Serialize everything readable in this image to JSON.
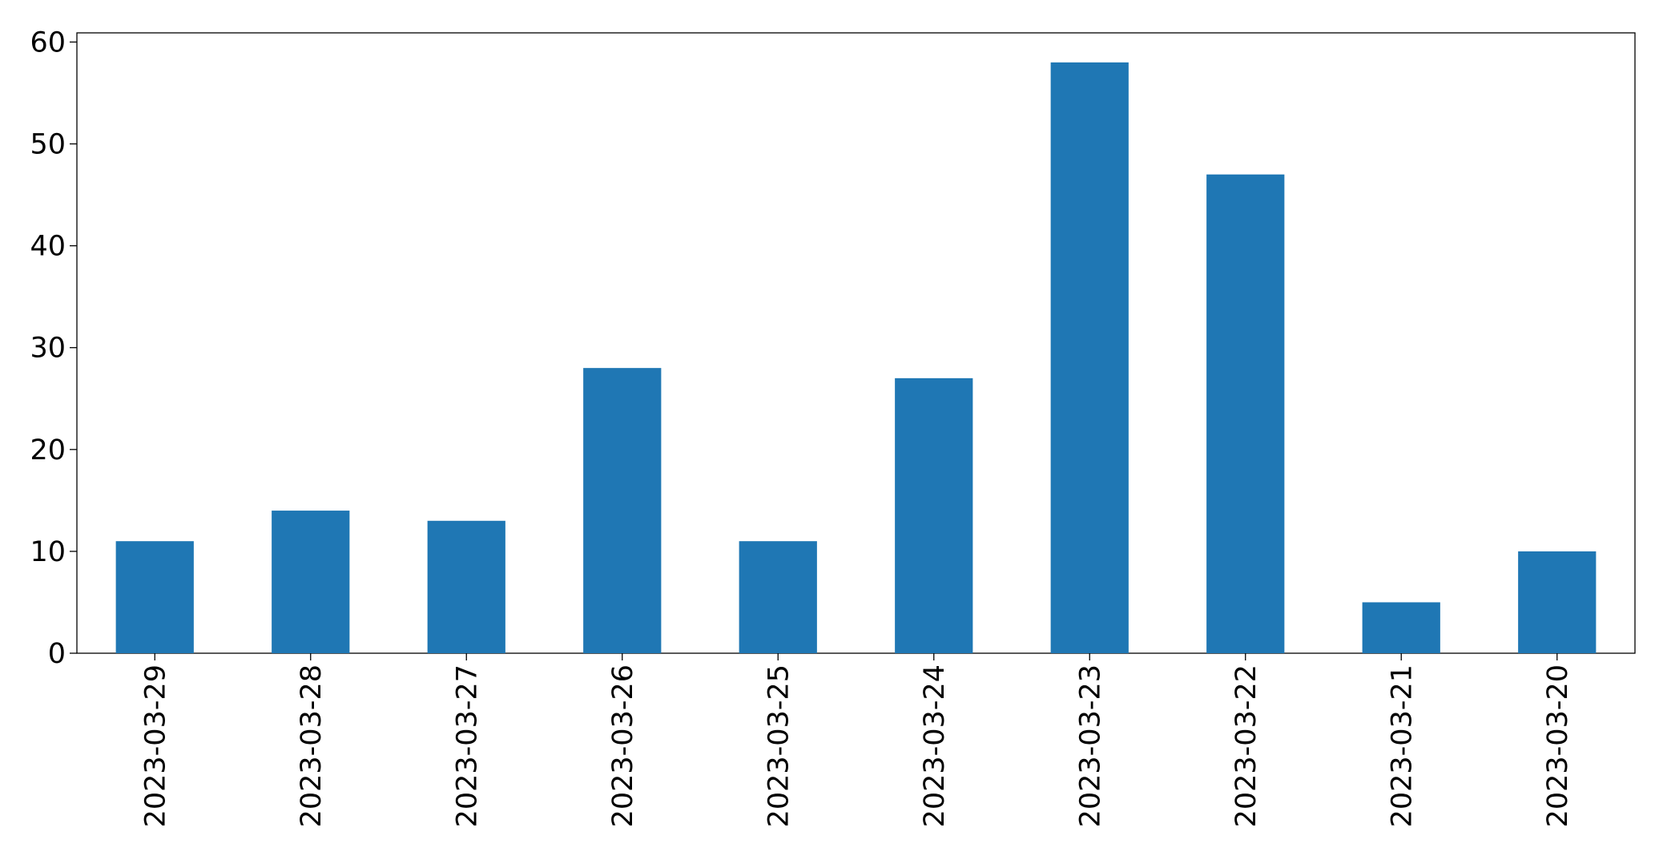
{
  "chart_data": {
    "type": "bar",
    "categories": [
      "2023-03-29",
      "2023-03-28",
      "2023-03-27",
      "2023-03-26",
      "2023-03-25",
      "2023-03-24",
      "2023-03-23",
      "2023-03-22",
      "2023-03-21",
      "2023-03-20"
    ],
    "values": [
      11,
      14,
      13,
      28,
      11,
      27,
      58,
      47,
      5,
      10
    ],
    "color": "#1f77b4",
    "ylim": [
      0,
      60.9
    ],
    "yticks": [
      0,
      10,
      20,
      30,
      40,
      50,
      60
    ],
    "grid": false
  }
}
